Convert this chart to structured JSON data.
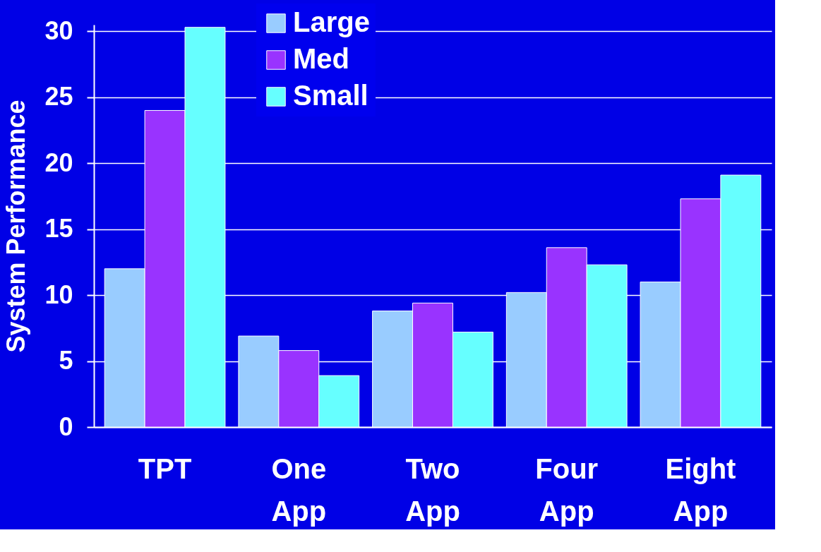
{
  "chart_data": {
    "type": "bar",
    "ylabel": "System Performance",
    "categories": [
      "TPT",
      "One App",
      "Two App",
      "Four App",
      "Eight App"
    ],
    "series": [
      {
        "name": "Large",
        "color": "#99ccff",
        "values": [
          12.0,
          6.9,
          8.8,
          10.2,
          11.0
        ]
      },
      {
        "name": "Med",
        "color": "#9933ff",
        "values": [
          24.0,
          5.8,
          9.4,
          13.6,
          17.3
        ]
      },
      {
        "name": "Small",
        "color": "#66ffff",
        "values": [
          30.3,
          3.9,
          7.2,
          12.3,
          19.1
        ]
      }
    ],
    "ylim": [
      0,
      30.5
    ],
    "yticks": [
      0,
      5,
      10,
      15,
      20,
      25,
      30
    ],
    "grid": "y",
    "legend": "top"
  }
}
